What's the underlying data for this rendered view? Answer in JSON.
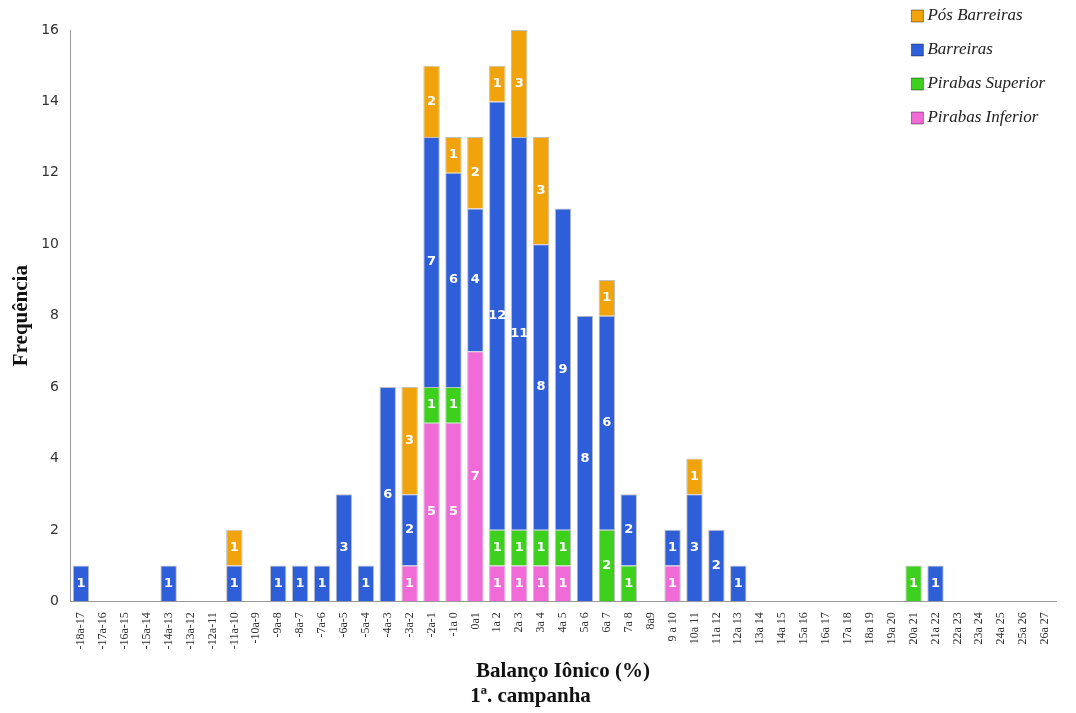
{
  "chart_data": {
    "type": "bar",
    "stacked": true,
    "title": "1ª. campanha",
    "xlabel": "Balanço Iônico (%)",
    "ylabel": "Frequência",
    "categories": [
      "-18a-17",
      "-17a-16",
      "-16a-15",
      "-15a-14",
      "-14a-13",
      "-13a-12",
      "-12a-11",
      "-11a-10",
      "-10a-9",
      "-9a-8",
      "-8a-7",
      "-7a-6",
      "-6a-5",
      "-5a-4",
      "-4a-3",
      "-3a-2",
      "-2a-1",
      "-1a 0",
      "0a1",
      "1a 2",
      "2a 3",
      "3a 4",
      "4a 5",
      "5a 6",
      "6a 7",
      "7a 8",
      "8a9",
      "9 a 10",
      "10a 11",
      "11a 12",
      "12a 13",
      "13a 14",
      "14a 15",
      "15a 16",
      "16a 17",
      "17a 18",
      "18a 19",
      "19a 20",
      "20a 21",
      "21a 22",
      "22a 23",
      "23a 24",
      "24a 25",
      "25a 26",
      "26a 27"
    ],
    "series": [
      {
        "name": "Pirabas Inferior",
        "color": "#f06ad8",
        "values": [
          null,
          null,
          null,
          null,
          null,
          null,
          null,
          null,
          null,
          null,
          null,
          null,
          null,
          null,
          null,
          1,
          5,
          5,
          7,
          1,
          1,
          1,
          1,
          null,
          null,
          null,
          null,
          1,
          null,
          null,
          null,
          null,
          null,
          null,
          null,
          null,
          null,
          null,
          null,
          null,
          null,
          null,
          null,
          null,
          null
        ]
      },
      {
        "name": "Pirabas Superior",
        "color": "#3dd11e",
        "values": [
          null,
          null,
          null,
          null,
          null,
          null,
          null,
          null,
          null,
          null,
          null,
          null,
          null,
          null,
          null,
          null,
          1,
          1,
          null,
          1,
          1,
          1,
          1,
          null,
          2,
          1,
          null,
          null,
          null,
          null,
          null,
          null,
          null,
          null,
          null,
          null,
          null,
          null,
          1,
          null,
          null,
          null,
          null,
          null,
          null
        ]
      },
      {
        "name": "Barreiras",
        "color": "#2e5fd8",
        "values": [
          1,
          null,
          null,
          null,
          1,
          null,
          null,
          1,
          null,
          1,
          1,
          1,
          3,
          1,
          6,
          2,
          7,
          6,
          4,
          12,
          11,
          8,
          9,
          8,
          6,
          2,
          null,
          1,
          3,
          2,
          1,
          null,
          null,
          null,
          null,
          null,
          null,
          null,
          null,
          1,
          null,
          null,
          null,
          null,
          null
        ]
      },
      {
        "name": "Pós Barreiras",
        "color": "#f0a30a",
        "values": [
          null,
          null,
          null,
          null,
          null,
          null,
          null,
          1,
          null,
          null,
          null,
          null,
          null,
          null,
          null,
          3,
          2,
          1,
          2,
          1,
          3,
          3,
          null,
          null,
          1,
          null,
          null,
          null,
          1,
          null,
          null,
          null,
          null,
          null,
          null,
          null,
          null,
          null,
          null,
          null,
          null,
          null,
          null,
          null,
          null
        ]
      }
    ],
    "ylim": [
      0,
      16
    ],
    "yticks": [
      0,
      2,
      4,
      6,
      8,
      10,
      12,
      14,
      16
    ],
    "grid": false,
    "legend": "top right",
    "data_labels": true
  }
}
